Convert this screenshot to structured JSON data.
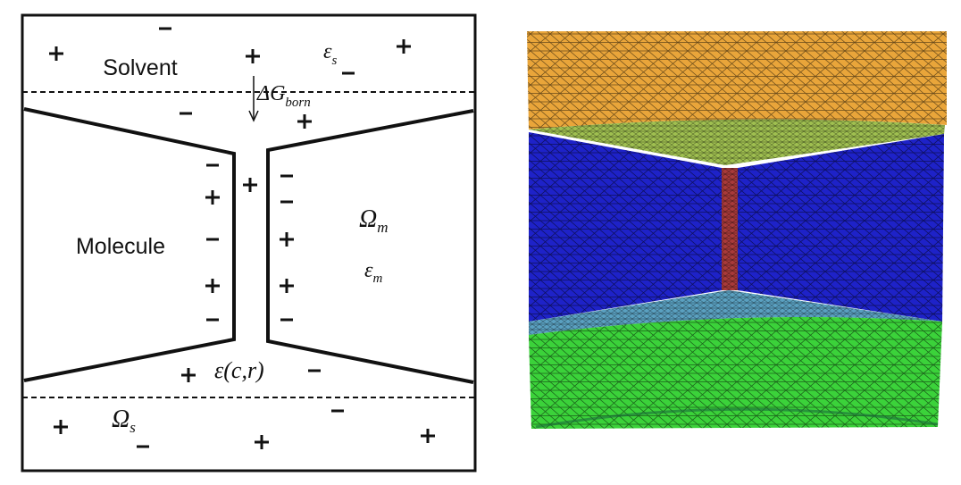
{
  "left_panel": {
    "solvent_label": "Solvent",
    "molecule_label": "Molecule",
    "eps_s": {
      "symbol": "ε",
      "subscript": "s"
    },
    "delta_g": {
      "symbol": "ΔG",
      "subscript": "born"
    },
    "omega_m": {
      "symbol": "Ω",
      "subscript": "m"
    },
    "eps_m": {
      "symbol": "ε",
      "subscript": "m"
    },
    "eps_cr": "ε(c,r)",
    "omega_s": {
      "symbol": "Ω",
      "subscript": "s"
    }
  }
}
